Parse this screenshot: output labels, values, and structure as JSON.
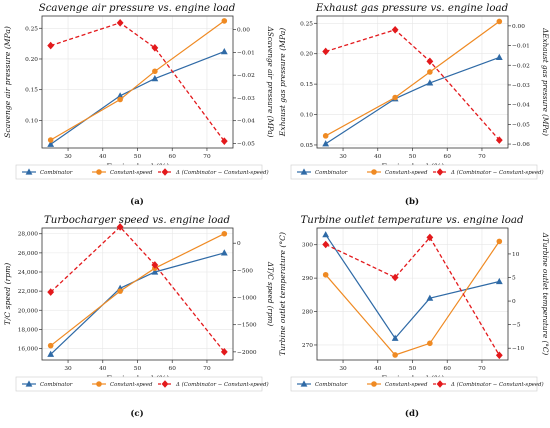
{
  "legend_labels": {
    "combinator": "Combinator",
    "constant": "Constant-speed",
    "delta": "Δ (Combinator − Constant-speed)"
  },
  "colors": {
    "combinator": "#2f6aa6",
    "constant": "#ef8a23",
    "delta": "#e3191c",
    "grid": "#e6e6e6",
    "axis": "#333333"
  },
  "chart_data": [
    {
      "type": "line",
      "panel_label": "(a)",
      "title": "Scavenge air pressure vs. engine load",
      "xlabel": "Engine load (%)",
      "ylabel": "Scavenge air pressure (MPa)",
      "y2label": "ΔScavenge air pressure (MPa)",
      "x": [
        25,
        45,
        55,
        75
      ],
      "xlim": [
        22.5,
        77.5
      ],
      "xticks": [
        "30",
        "40",
        "50",
        "60",
        "70"
      ],
      "xtick_values": [
        30,
        40,
        50,
        60,
        70
      ],
      "ylim": [
        0.055,
        0.27
      ],
      "yticks": [
        "0.10",
        "0.15",
        "0.20",
        "0.25"
      ],
      "ytick_values": [
        0.1,
        0.15,
        0.2,
        0.25
      ],
      "y2lim": [
        -0.052,
        0.006
      ],
      "y2ticks": [
        "0.00",
        "−0.01",
        "−0.02",
        "−0.03",
        "−0.04",
        "−0.05"
      ],
      "y2tick_values": [
        0.0,
        -0.01,
        -0.02,
        -0.03,
        -0.04,
        -0.05
      ],
      "series": [
        {
          "name": "Combinator",
          "values": [
            0.061,
            0.14,
            0.168,
            0.212
          ]
        },
        {
          "name": "Constant-speed",
          "values": [
            0.068,
            0.134,
            0.18,
            0.262
          ]
        },
        {
          "name": "Δ (Combinator − Constant-speed)",
          "axis": "right",
          "values": [
            -0.007,
            0.003,
            -0.008,
            -0.049
          ]
        }
      ]
    },
    {
      "type": "line",
      "panel_label": "(b)",
      "title": "Exhaust gas pressure vs. engine load",
      "xlabel": "Engine load (%)",
      "ylabel": "Exhaust gas pressure (MPa)",
      "y2label": "ΔExhaust gas pressure (MPa)",
      "x": [
        25,
        45,
        55,
        75
      ],
      "xlim": [
        22.5,
        77.5
      ],
      "xticks": [
        "30",
        "40",
        "50",
        "60",
        "70"
      ],
      "xtick_values": [
        30,
        40,
        50,
        60,
        70
      ],
      "ylim": [
        0.045,
        0.262
      ],
      "yticks": [
        "0.05",
        "0.10",
        "0.15",
        "0.20",
        "0.25"
      ],
      "ytick_values": [
        0.05,
        0.1,
        0.15,
        0.2,
        0.25
      ],
      "y2lim": [
        -0.062,
        0.005
      ],
      "y2ticks": [
        "0.00",
        "−0.01",
        "−0.02",
        "−0.03",
        "−0.04",
        "−0.05",
        "−0.06"
      ],
      "y2tick_values": [
        0.0,
        -0.01,
        -0.02,
        -0.03,
        -0.04,
        -0.05,
        -0.06
      ],
      "series": [
        {
          "name": "Combinator",
          "values": [
            0.052,
            0.126,
            0.152,
            0.194
          ]
        },
        {
          "name": "Constant-speed",
          "values": [
            0.065,
            0.128,
            0.17,
            0.253
          ]
        },
        {
          "name": "Δ (Combinator − Constant-speed)",
          "axis": "right",
          "values": [
            -0.013,
            -0.002,
            -0.018,
            -0.058
          ]
        }
      ]
    },
    {
      "type": "line",
      "panel_label": "(c)",
      "title": "Turbocharger speed vs. engine load",
      "xlabel": "Engine load (%)",
      "ylabel": "T/C speed (rpm)",
      "y2label": "ΔT/C speed (rpm)",
      "x": [
        25,
        45,
        55,
        75
      ],
      "xlim": [
        22.5,
        77.5
      ],
      "xticks": [
        "30",
        "40",
        "50",
        "60",
        "70"
      ],
      "xtick_values": [
        30,
        40,
        50,
        60,
        70
      ],
      "ylim": [
        14800,
        28600
      ],
      "yticks": [
        "16,000",
        "18,000",
        "20,000",
        "22,000",
        "24,000",
        "26,000",
        "28,000"
      ],
      "ytick_values": [
        16000,
        18000,
        20000,
        22000,
        24000,
        26000,
        28000
      ],
      "y2lim": [
        -2150,
        280
      ],
      "y2ticks": [
        "0",
        "−500",
        "−1000",
        "−1500",
        "−2000"
      ],
      "y2tick_values": [
        0,
        -500,
        -1000,
        -1500,
        -2000
      ],
      "series": [
        {
          "name": "Combinator",
          "values": [
            15400,
            22300,
            24000,
            26000
          ]
        },
        {
          "name": "Constant-speed",
          "values": [
            16300,
            22000,
            24400,
            28000
          ]
        },
        {
          "name": "Δ (Combinator − Constant-speed)",
          "axis": "right",
          "values": [
            -900,
            300,
            -400,
            -2000
          ]
        }
      ]
    },
    {
      "type": "line",
      "panel_label": "(d)",
      "title": "Turbine outlet temperature vs. engine load",
      "xlabel": "Engine load (%)",
      "ylabel": "Turbine outlet temperature (°C)",
      "y2label": "ΔTurbine outlet temperature (°C)",
      "x": [
        25,
        45,
        55,
        75
      ],
      "xlim": [
        22.5,
        77.5
      ],
      "xticks": [
        "30",
        "40",
        "50",
        "60",
        "70"
      ],
      "xtick_values": [
        30,
        40,
        50,
        60,
        70
      ],
      "ylim": [
        265.5,
        305
      ],
      "yticks": [
        "270",
        "280",
        "290",
        "300"
      ],
      "ytick_values": [
        270,
        280,
        290,
        300
      ],
      "y2lim": [
        -12.5,
        15.5
      ],
      "y2ticks": [
        "10",
        "5",
        "0",
        "−5",
        "−10"
      ],
      "y2tick_values": [
        10,
        5,
        0,
        -5,
        -10
      ],
      "series": [
        {
          "name": "Combinator",
          "values": [
            303,
            272,
            284,
            289
          ]
        },
        {
          "name": "Constant-speed",
          "values": [
            291,
            267,
            270.5,
            301
          ]
        },
        {
          "name": "Δ (Combinator − Constant-speed)",
          "axis": "right",
          "values": [
            12,
            5,
            13.5,
            -11.5
          ]
        }
      ]
    }
  ]
}
